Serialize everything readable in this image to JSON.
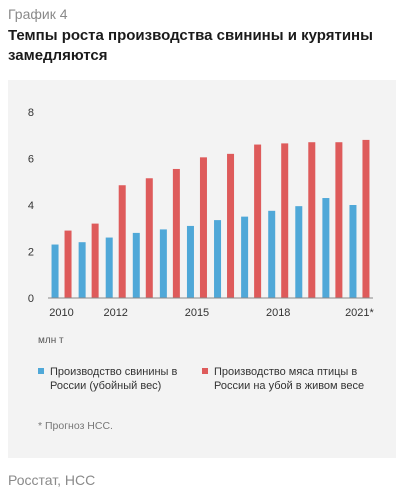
{
  "header": {
    "kicker": "График 4",
    "title": "Темпы роста производства свинины и курятины замедляются"
  },
  "unit_label": "млн т",
  "footnote": "* Прогноз НСС.",
  "source": "Росстат, НСС",
  "colors": {
    "pork": "#4fa8d8",
    "poultry": "#de5b5b",
    "panel_bg": "#f3f3f3",
    "axis": "#888888"
  },
  "chart_data": {
    "type": "bar",
    "categories": [
      "2010",
      "2011",
      "2012",
      "2013",
      "2014",
      "2015",
      "2016",
      "2017",
      "2018",
      "2019",
      "2020",
      "2021*"
    ],
    "x_tick_labels": [
      "2010",
      "",
      "2012",
      "",
      "",
      "2015",
      "",
      "",
      "2018",
      "",
      "",
      "2021*"
    ],
    "series": [
      {
        "name": "Производство свинины в России (убойный вес)",
        "color": "#4fa8d8",
        "values": [
          2.3,
          2.4,
          2.6,
          2.8,
          2.95,
          3.1,
          3.35,
          3.5,
          3.75,
          3.95,
          4.3,
          4.0
        ]
      },
      {
        "name": "Производство мяса птицы в России на убой в живом весе",
        "color": "#de5b5b",
        "values": [
          2.9,
          3.2,
          4.85,
          5.15,
          5.55,
          6.05,
          6.2,
          6.6,
          6.65,
          6.7,
          6.7,
          6.8
        ]
      }
    ],
    "y_ticks": [
      0,
      2,
      4,
      6,
      8
    ],
    "ylim": [
      0,
      8
    ],
    "xlabel": "",
    "ylabel": "",
    "grid": false,
    "legend_position": "bottom"
  }
}
